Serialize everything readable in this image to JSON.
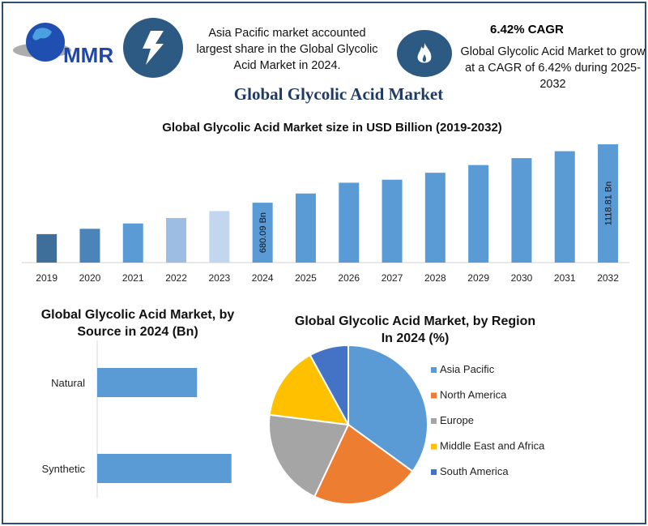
{
  "logo": {
    "text": "MMR"
  },
  "header": {
    "info1": "Asia Pacific market accounted largest share in the Global Glycolic Acid Market in 2024.",
    "cagr_title": "6.42% CAGR",
    "info2": "Global Glycolic Acid Market to grow at a CAGR of 6.42% during 2025-2032",
    "icons": [
      "lightning-icon",
      "flame-icon"
    ]
  },
  "title": "Global Glycolic Acid Market",
  "colors": {
    "accent": "#2d5a83",
    "title": "#1f3b63"
  },
  "chart_data": [
    {
      "type": "bar",
      "title": "Global Glycolic Acid Market size in USD Billion (2019-2032)",
      "categories": [
        "2019",
        "2020",
        "2021",
        "2022",
        "2023",
        "2024",
        "2025",
        "2026",
        "2027",
        "2028",
        "2029",
        "2030",
        "2031",
        "2032"
      ],
      "values": [
        444,
        484,
        524,
        565,
        617,
        680.09,
        749,
        830,
        853,
        905,
        963,
        1015,
        1067,
        1118.81
      ],
      "data_labels": {
        "2024": "680.09 Bn",
        "2032": "1118.81 Bn"
      },
      "colors": [
        "#3e6f9a",
        "#4a84b8",
        "#5b9bd5",
        "#9dbde2",
        "#c2d6ee",
        "#5b9bd5",
        "#5b9bd5",
        "#5b9bd5",
        "#5b9bd5",
        "#5b9bd5",
        "#5b9bd5",
        "#5b9bd5",
        "#5b9bd5",
        "#5b9bd5"
      ],
      "ylim": [
        230,
        1180
      ],
      "grid": false
    },
    {
      "type": "bar",
      "orientation": "horizontal",
      "title": "Global Glycolic Acid Market, by Source in 2024 (Bn)",
      "categories": [
        "Natural",
        "Synthetic"
      ],
      "values": [
        290,
        390
      ],
      "color": "#5b9bd5"
    },
    {
      "type": "pie",
      "title": "Global Glycolic Acid Market, by Region In 2024 (%)",
      "categories": [
        "Asia Pacific",
        "North America",
        "Europe",
        "Middle East and Africa",
        "South America"
      ],
      "values": [
        35,
        22,
        20,
        15,
        8
      ],
      "colors": [
        "#5b9bd5",
        "#ed7d31",
        "#a5a5a5",
        "#ffc000",
        "#4472c4"
      ],
      "legend": "right"
    }
  ]
}
